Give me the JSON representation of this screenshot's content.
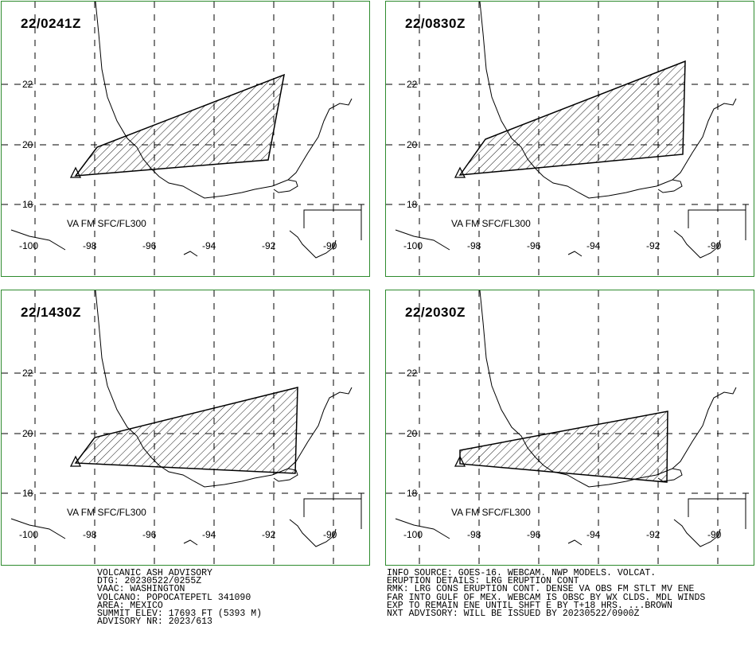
{
  "panels": [
    {
      "time": "22/0241Z"
    },
    {
      "time": "22/0830Z"
    },
    {
      "time": "22/1430Z"
    },
    {
      "time": "22/2030Z"
    }
  ],
  "va_label": "VA FM SFC/FL300",
  "lat_labels": [
    "22",
    "20",
    "18"
  ],
  "lon_labels": [
    "-100",
    "-98",
    "-96",
    "-94",
    "-92",
    "-90"
  ],
  "advisory_left": [
    "VOLCANIC ASH ADVISORY",
    "DTG: 20230522/0255Z",
    "VAAC: WASHINGTON",
    "VOLCANO: POPOCATEPETL 341090",
    "AREA: MEXICO",
    "SUMMIT ELEV: 17693 FT (5393 M)",
    "ADVISORY NR: 2023/613"
  ],
  "advisory_right": [
    "INFO SOURCE: GOES-16. WEBCAM. NWP MODELS. VOLCAT.",
    "ERUPTION DETAILS: LRG ERUPTION CONT",
    "RMK: LRG CONS ERUPTION CONT. DENSE VA OBS FM STLT MV ENE",
    "FAR INTO GULF OF MEX. WEBCAM IS OBSC BY WX CLDS. MDL WINDS",
    "EXP TO REMAIN ENE UNTIL SHFT E BY T+18 HRS. ...BROWN",
    "NXT ADVISORY: WILL BE ISSUED BY 20230522/0900Z"
  ],
  "colors": {
    "border": "#2e8b2e",
    "ash": "#000000",
    "grid": "#000000"
  }
}
